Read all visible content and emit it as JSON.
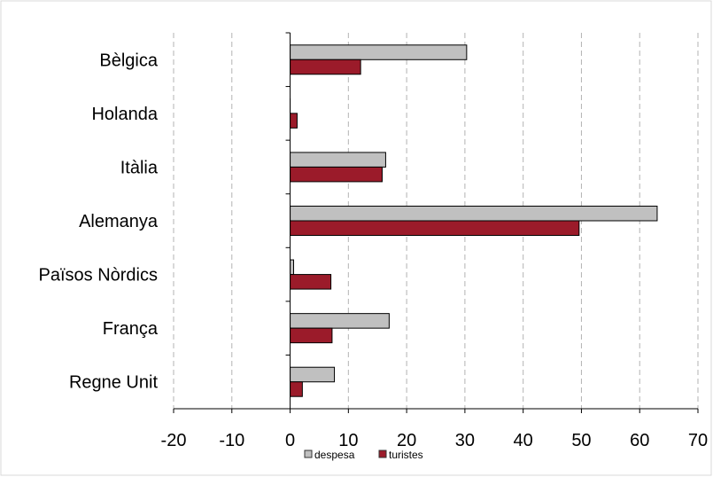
{
  "chart_data": {
    "type": "bar",
    "orientation": "horizontal",
    "categories": [
      "Bèlgica",
      "Holanda",
      "Itàlia",
      "Alemanya",
      "Països Nòrdics",
      "França",
      "Regne Unit"
    ],
    "series": [
      {
        "name": "despesa",
        "color": "#c0c0c0",
        "values": [
          30.3,
          0.0,
          16.4,
          63.0,
          0.6,
          17.0,
          7.6
        ]
      },
      {
        "name": "turistes",
        "color": "#9b1b2a",
        "values": [
          12.1,
          1.2,
          15.8,
          49.6,
          7.0,
          7.2,
          2.1
        ]
      }
    ],
    "xlim": [
      -20,
      70
    ],
    "xticks": [
      "-20",
      "-10",
      "0",
      "10",
      "20",
      "30",
      "40",
      "50",
      "60",
      "70"
    ],
    "grid": true,
    "legend": "bottom"
  }
}
